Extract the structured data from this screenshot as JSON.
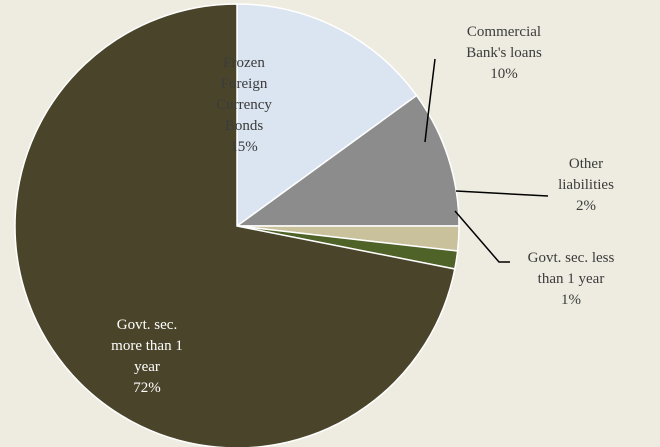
{
  "chart_data": {
    "type": "pie",
    "title": "",
    "start_angle_deg": 90,
    "direction": "clockwise",
    "slices": [
      {
        "label": "Frozen Foreign Currency Bonds",
        "display_lines": [
          "Frozen",
          "Foreign",
          "Currency",
          "Bonds",
          "15%"
        ],
        "value": 15,
        "percent_label": "15%",
        "color": "#dbe5f1",
        "label_color": "#3b3b3b"
      },
      {
        "label": "Commercial Bank's loans",
        "display_lines": [
          "Commercial",
          "Bank's loans",
          "10%"
        ],
        "value": 10,
        "percent_label": "10%",
        "color": "#8c8c8c",
        "label_color": "#3b3b3b"
      },
      {
        "label": "Other liabilities",
        "display_lines": [
          "Other",
          "liabilities",
          "2%"
        ],
        "value": 1.8,
        "percent_label": "2%",
        "color": "#c9c19b",
        "label_color": "#3b3b3b"
      },
      {
        "label": "Govt. sec. less than 1 year",
        "display_lines": [
          "Govt. sec. less",
          "than 1 year",
          "1%"
        ],
        "value": 1.3,
        "percent_label": "1%",
        "color": "#4f6228",
        "label_color": "#3b3b3b"
      },
      {
        "label": "Govt. sec. more than 1 year",
        "display_lines": [
          "Govt. sec.",
          "more than 1",
          "year",
          "72%"
        ],
        "value": 71.9,
        "percent_label": "72%",
        "color": "#4a452a",
        "label_color": "#ffffff"
      }
    ]
  }
}
